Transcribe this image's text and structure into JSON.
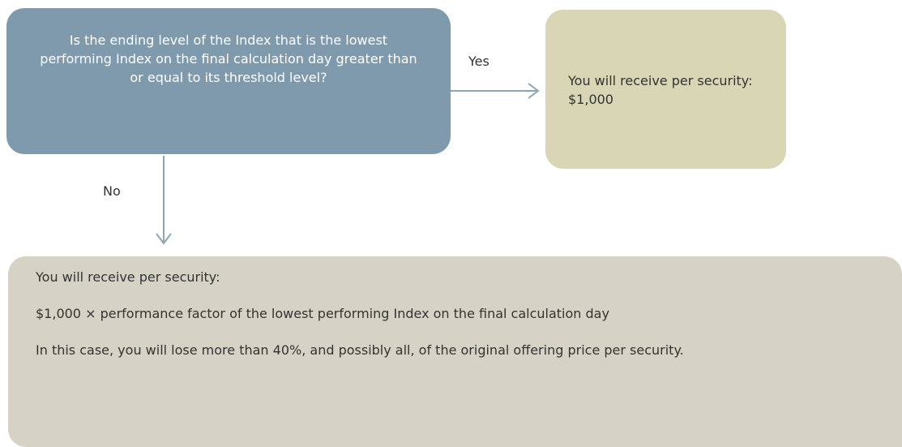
{
  "nodes": [
    {
      "label": "Is the ending level of the Index that is the lowest performing Index on the final calculation day greater than or equal to its threshold level?"
    },
    {
      "label": "You will receive per security: $1,000"
    },
    {
      "paragraphs": [
        "You will receive per security:",
        "$1,000 × performance factor of the lowest performing Index on the final calculation day",
        "In this case, you will lose more than 40%, and possibly all, of the original offering price per security."
      ]
    }
  ],
  "edges": [
    {
      "label": "Yes"
    },
    {
      "label": "No"
    }
  ]
}
